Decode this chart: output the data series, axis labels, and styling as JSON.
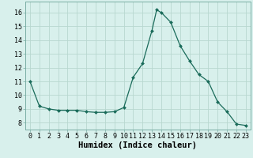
{
  "x": [
    0,
    1,
    2,
    3,
    4,
    5,
    6,
    7,
    8,
    9,
    10,
    11,
    12,
    13,
    13.5,
    14,
    15,
    16,
    17,
    18,
    19,
    20,
    21,
    22,
    23
  ],
  "y": [
    11.0,
    9.2,
    9.0,
    8.9,
    8.9,
    8.9,
    8.8,
    8.75,
    8.75,
    8.8,
    9.1,
    11.3,
    12.3,
    14.7,
    16.2,
    16.0,
    15.3,
    13.6,
    12.5,
    11.5,
    11.0,
    9.5,
    8.8,
    7.9,
    7.8
  ],
  "line_color": "#1a6b5a",
  "marker": "D",
  "marker_size": 2.0,
  "bg_color": "#d8f0ec",
  "grid_color": "#b8d8d0",
  "xlabel": "Humidex (Indice chaleur)",
  "xlabel_fontsize": 7.5,
  "tick_fontsize": 6.0,
  "ylim": [
    7.5,
    16.8
  ],
  "yticks": [
    8,
    9,
    10,
    11,
    12,
    13,
    14,
    15,
    16
  ],
  "xticks": [
    0,
    1,
    2,
    3,
    4,
    5,
    6,
    7,
    8,
    9,
    10,
    11,
    12,
    13,
    14,
    15,
    16,
    17,
    18,
    19,
    20,
    21,
    22,
    23
  ]
}
